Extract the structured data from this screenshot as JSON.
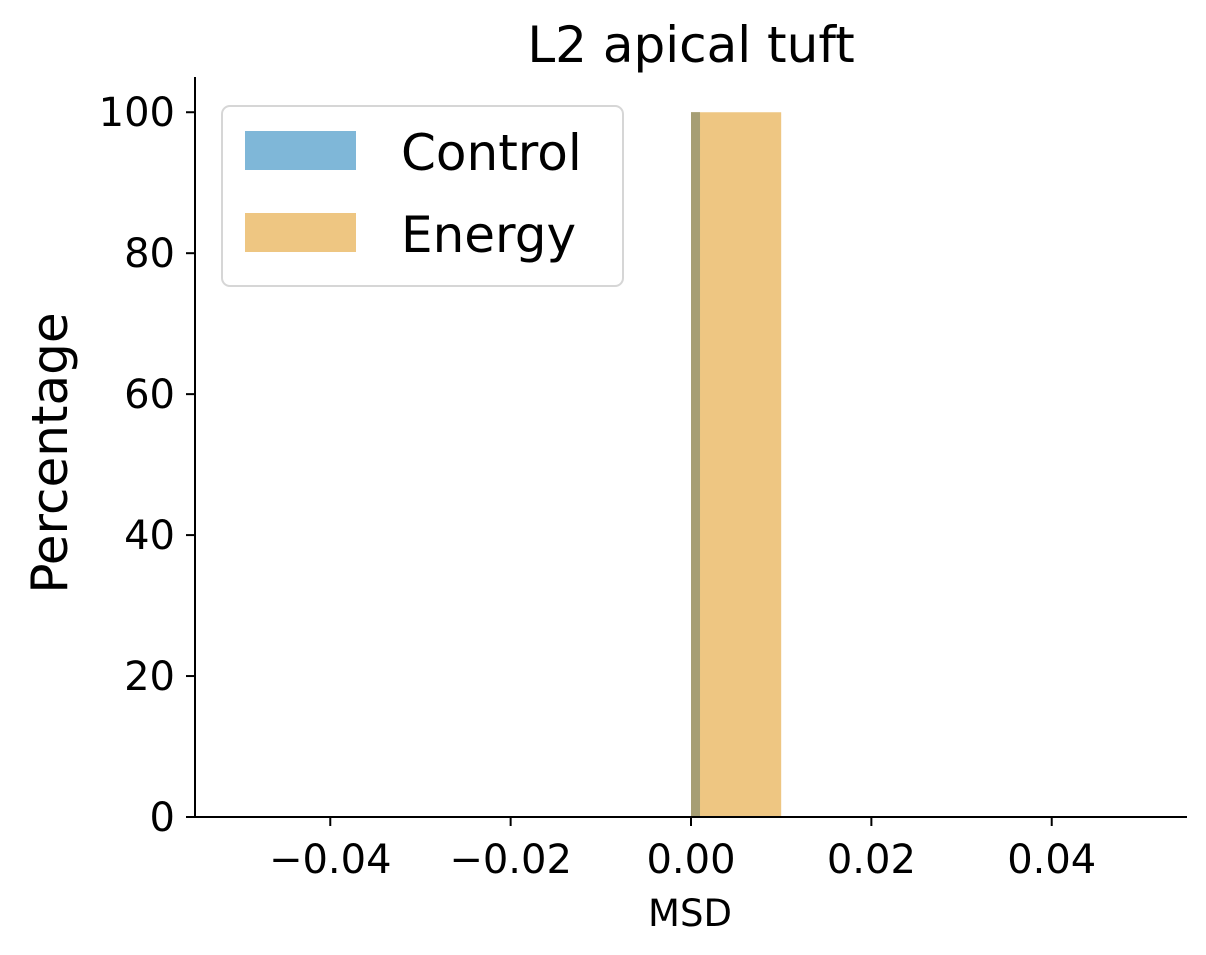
{
  "chart_data": {
    "type": "bar",
    "title": "L2 apical tuft",
    "xlabel": "MSD",
    "ylabel": "Percentage",
    "xlim": [
      -0.055,
      0.055
    ],
    "ylim": [
      0,
      105
    ],
    "xticks": [
      -0.04,
      -0.02,
      0.0,
      0.02,
      0.04
    ],
    "xtick_labels": [
      "−0.04",
      "−0.02",
      "0.00",
      "0.02",
      "0.04"
    ],
    "yticks": [
      0,
      20,
      40,
      60,
      80,
      100
    ],
    "ytick_labels": [
      "0",
      "20",
      "40",
      "60",
      "80",
      "100"
    ],
    "grid": false,
    "legend_position": "top-left",
    "series": [
      {
        "name": "Control",
        "color": "#7fb7d8",
        "bins": [
          {
            "x0": 0.0,
            "x1": 0.001,
            "value": 100
          }
        ]
      },
      {
        "name": "Energy",
        "color": "#eec682",
        "bins": [
          {
            "x0": 0.0,
            "x1": 0.01,
            "value": 100
          }
        ]
      }
    ],
    "overlap_color": "#a69e74"
  }
}
